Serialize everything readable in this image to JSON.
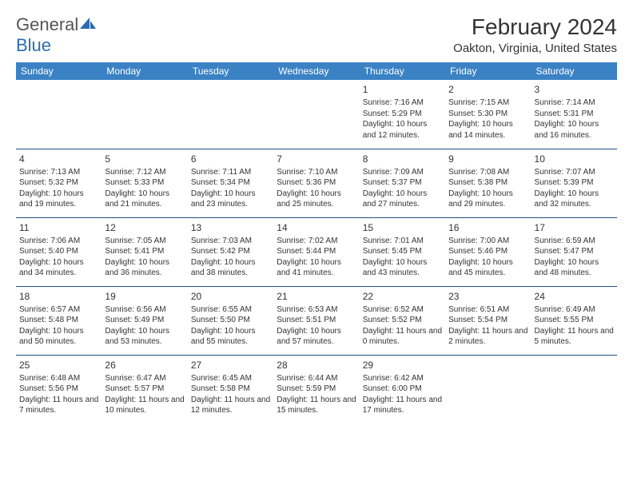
{
  "brand": {
    "part1": "General",
    "part2": "Blue"
  },
  "title": "February 2024",
  "location": "Oakton, Virginia, United States",
  "weekdays": [
    "Sunday",
    "Monday",
    "Tuesday",
    "Wednesday",
    "Thursday",
    "Friday",
    "Saturday"
  ],
  "colors": {
    "header_bg": "#3b82c4",
    "header_text": "#ffffff",
    "border": "#1d4e89",
    "logo_blue": "#2b6cb0"
  },
  "layout": {
    "first_weekday_index": 4,
    "num_days": 29
  },
  "days": [
    {
      "n": 1,
      "sunrise": "7:16 AM",
      "sunset": "5:29 PM",
      "daylight": "10 hours and 12 minutes."
    },
    {
      "n": 2,
      "sunrise": "7:15 AM",
      "sunset": "5:30 PM",
      "daylight": "10 hours and 14 minutes."
    },
    {
      "n": 3,
      "sunrise": "7:14 AM",
      "sunset": "5:31 PM",
      "daylight": "10 hours and 16 minutes."
    },
    {
      "n": 4,
      "sunrise": "7:13 AM",
      "sunset": "5:32 PM",
      "daylight": "10 hours and 19 minutes."
    },
    {
      "n": 5,
      "sunrise": "7:12 AM",
      "sunset": "5:33 PM",
      "daylight": "10 hours and 21 minutes."
    },
    {
      "n": 6,
      "sunrise": "7:11 AM",
      "sunset": "5:34 PM",
      "daylight": "10 hours and 23 minutes."
    },
    {
      "n": 7,
      "sunrise": "7:10 AM",
      "sunset": "5:36 PM",
      "daylight": "10 hours and 25 minutes."
    },
    {
      "n": 8,
      "sunrise": "7:09 AM",
      "sunset": "5:37 PM",
      "daylight": "10 hours and 27 minutes."
    },
    {
      "n": 9,
      "sunrise": "7:08 AM",
      "sunset": "5:38 PM",
      "daylight": "10 hours and 29 minutes."
    },
    {
      "n": 10,
      "sunrise": "7:07 AM",
      "sunset": "5:39 PM",
      "daylight": "10 hours and 32 minutes."
    },
    {
      "n": 11,
      "sunrise": "7:06 AM",
      "sunset": "5:40 PM",
      "daylight": "10 hours and 34 minutes."
    },
    {
      "n": 12,
      "sunrise": "7:05 AM",
      "sunset": "5:41 PM",
      "daylight": "10 hours and 36 minutes."
    },
    {
      "n": 13,
      "sunrise": "7:03 AM",
      "sunset": "5:42 PM",
      "daylight": "10 hours and 38 minutes."
    },
    {
      "n": 14,
      "sunrise": "7:02 AM",
      "sunset": "5:44 PM",
      "daylight": "10 hours and 41 minutes."
    },
    {
      "n": 15,
      "sunrise": "7:01 AM",
      "sunset": "5:45 PM",
      "daylight": "10 hours and 43 minutes."
    },
    {
      "n": 16,
      "sunrise": "7:00 AM",
      "sunset": "5:46 PM",
      "daylight": "10 hours and 45 minutes."
    },
    {
      "n": 17,
      "sunrise": "6:59 AM",
      "sunset": "5:47 PM",
      "daylight": "10 hours and 48 minutes."
    },
    {
      "n": 18,
      "sunrise": "6:57 AM",
      "sunset": "5:48 PM",
      "daylight": "10 hours and 50 minutes."
    },
    {
      "n": 19,
      "sunrise": "6:56 AM",
      "sunset": "5:49 PM",
      "daylight": "10 hours and 53 minutes."
    },
    {
      "n": 20,
      "sunrise": "6:55 AM",
      "sunset": "5:50 PM",
      "daylight": "10 hours and 55 minutes."
    },
    {
      "n": 21,
      "sunrise": "6:53 AM",
      "sunset": "5:51 PM",
      "daylight": "10 hours and 57 minutes."
    },
    {
      "n": 22,
      "sunrise": "6:52 AM",
      "sunset": "5:52 PM",
      "daylight": "11 hours and 0 minutes."
    },
    {
      "n": 23,
      "sunrise": "6:51 AM",
      "sunset": "5:54 PM",
      "daylight": "11 hours and 2 minutes."
    },
    {
      "n": 24,
      "sunrise": "6:49 AM",
      "sunset": "5:55 PM",
      "daylight": "11 hours and 5 minutes."
    },
    {
      "n": 25,
      "sunrise": "6:48 AM",
      "sunset": "5:56 PM",
      "daylight": "11 hours and 7 minutes."
    },
    {
      "n": 26,
      "sunrise": "6:47 AM",
      "sunset": "5:57 PM",
      "daylight": "11 hours and 10 minutes."
    },
    {
      "n": 27,
      "sunrise": "6:45 AM",
      "sunset": "5:58 PM",
      "daylight": "11 hours and 12 minutes."
    },
    {
      "n": 28,
      "sunrise": "6:44 AM",
      "sunset": "5:59 PM",
      "daylight": "11 hours and 15 minutes."
    },
    {
      "n": 29,
      "sunrise": "6:42 AM",
      "sunset": "6:00 PM",
      "daylight": "11 hours and 17 minutes."
    }
  ],
  "labels": {
    "sunrise": "Sunrise:",
    "sunset": "Sunset:",
    "daylight": "Daylight:"
  }
}
